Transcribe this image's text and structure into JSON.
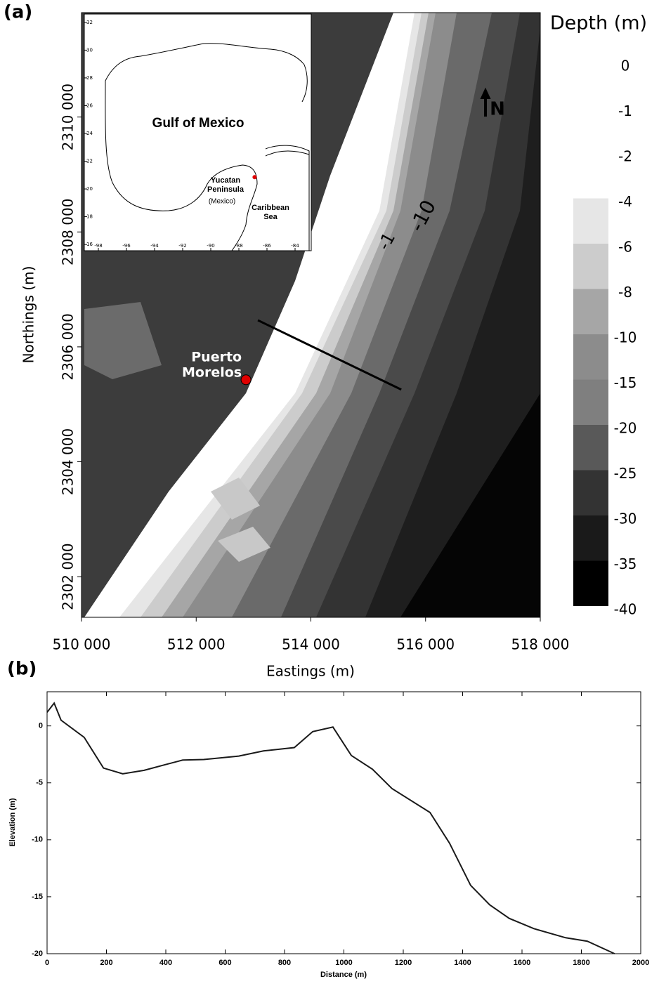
{
  "chart_data": [
    {
      "type": "map",
      "label": "(a)",
      "xlabel": "Eastings (m)",
      "ylabel": "Northings (m)",
      "xlim": [
        510000,
        518000
      ],
      "ylim": [
        2301293,
        2311817
      ],
      "xticks": [
        {
          "value": 510000,
          "label": "510 000"
        },
        {
          "value": 512000,
          "label": "512 000"
        },
        {
          "value": 514000,
          "label": "514 000"
        },
        {
          "value": 516000,
          "label": "516 000"
        },
        {
          "value": 518000,
          "label": "518 000"
        }
      ],
      "yticks": [
        {
          "value": 2302000,
          "label": "2302 000"
        },
        {
          "value": 2304000,
          "label": "2304 000"
        },
        {
          "value": 2306000,
          "label": "2306 000"
        },
        {
          "value": 2308000,
          "label": "2308 000"
        },
        {
          "value": 2310000,
          "label": "2310 000"
        }
      ],
      "colorbar": {
        "title": "Depth (m)",
        "levels": [
          0,
          -1,
          -2,
          -4,
          -6,
          -8,
          -10,
          -15,
          -20,
          -25,
          -30,
          -35,
          -40
        ],
        "colors": [
          "#e6e6e6",
          "#cccccc",
          "#a6a6a6",
          "#8c8c8c",
          "#7f7f7f",
          "#595959",
          "#333333",
          "#1a1a1a",
          "#000000"
        ]
      },
      "transect": {
        "x": [
          513076,
          515576
        ],
        "y": [
          2306463,
          2305256
        ],
        "color": "#000000"
      },
      "site": {
        "name": [
          "Puerto",
          "Morelos"
        ],
        "x": 512868,
        "y": 2305427,
        "color": "#e00000"
      },
      "north": "N",
      "contour_labels": [
        "-1",
        "-10"
      ],
      "inset": {
        "xlim": [
          -99,
          -82.85
        ],
        "ylim": [
          15.55,
          32.6
        ],
        "xticks": [
          -98,
          -96,
          -94,
          -92,
          -90,
          -88,
          -86,
          -84
        ],
        "yticks": [
          16,
          18,
          20,
          22,
          24,
          26,
          28,
          30,
          32
        ],
        "labels": [
          "Gulf of Mexico",
          "Yucatan",
          "Peninsula",
          "(Mexico)",
          "Caribbean",
          "Sea"
        ],
        "site": {
          "x": -86.88,
          "y": 20.85
        }
      }
    },
    {
      "type": "line",
      "label": "(b)",
      "xlabel": "Distance (m)",
      "ylabel": "Elevation (m)",
      "color": "#1a1a1a",
      "xlim": [
        0,
        2000
      ],
      "ylim": [
        -20,
        3
      ],
      "xticks": [
        0,
        200,
        400,
        600,
        800,
        1000,
        1200,
        1400,
        1600,
        1800,
        2000
      ],
      "yticks": [
        -20,
        -15,
        -10,
        -5,
        0
      ],
      "x": [
        0,
        24,
        47,
        125,
        190,
        255,
        327,
        398,
        457,
        528,
        646,
        729,
        833,
        895,
        963,
        1025,
        1096,
        1162,
        1290,
        1356,
        1427,
        1491,
        1557,
        1640,
        1747,
        1820,
        1912
      ],
      "values": [
        1.2,
        2.0,
        0.5,
        -1.0,
        -3.7,
        -4.2,
        -3.9,
        -3.4,
        -3.0,
        -2.95,
        -2.65,
        -2.2,
        -1.9,
        -0.5,
        -0.1,
        -2.6,
        -3.8,
        -5.5,
        -7.6,
        -10.3,
        -14.0,
        -15.7,
        -16.9,
        -17.8,
        -18.6,
        -18.9,
        -20
      ]
    }
  ]
}
